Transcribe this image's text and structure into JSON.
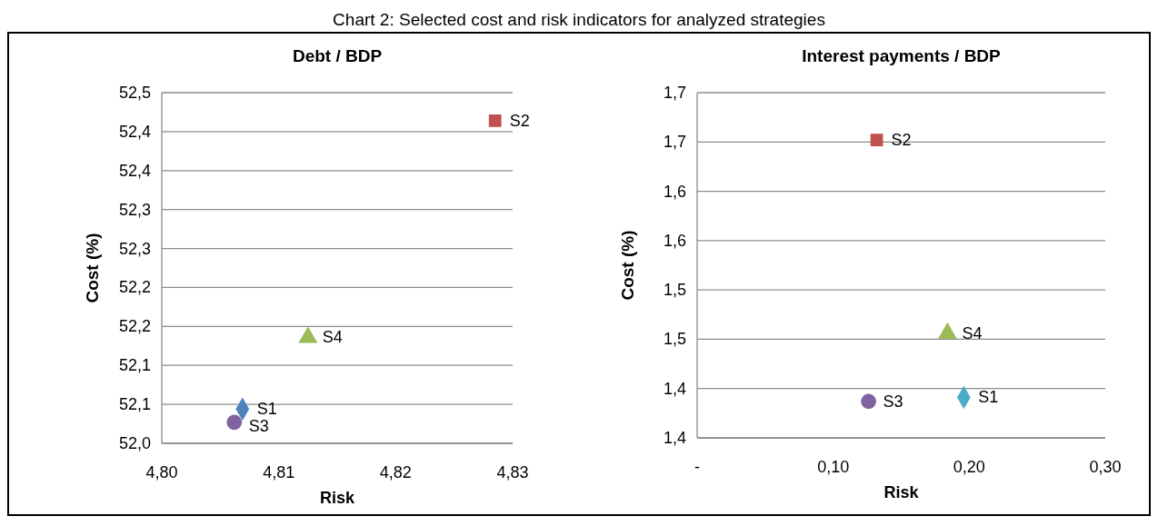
{
  "chart_data": [
    {
      "type": "scatter",
      "title": "Debt / BDP",
      "xlabel": "Risk",
      "ylabel": "Cost (%)",
      "annotations": [
        "Chart 2: Selected cost and risk indicators for analyzed strategies"
      ],
      "xlim": [
        4.8,
        4.83
      ],
      "xticks": [
        {
          "value": 4.8,
          "label": "4,80"
        },
        {
          "value": 4.81,
          "label": "4,81"
        },
        {
          "value": 4.82,
          "label": "4,82"
        },
        {
          "value": 4.83,
          "label": "4,83"
        }
      ],
      "ylim": [
        52.0,
        52.45
      ],
      "yticks": [
        {
          "value": 52.0,
          "label": "52,0"
        },
        {
          "value": 52.05,
          "label": "52,1"
        },
        {
          "value": 52.1,
          "label": "52,1"
        },
        {
          "value": 52.15,
          "label": "52,2"
        },
        {
          "value": 52.2,
          "label": "52,2"
        },
        {
          "value": 52.25,
          "label": "52,3"
        },
        {
          "value": 52.3,
          "label": "52,3"
        },
        {
          "value": 52.35,
          "label": "52,4"
        },
        {
          "value": 52.4,
          "label": "52,4"
        },
        {
          "value": 52.45,
          "label": "52,5"
        }
      ],
      "grid": "y",
      "legend": false,
      "series": [
        {
          "name": "S1",
          "color": "#4f81bd",
          "marker": "diamond",
          "x": [
            4.8069
          ],
          "values": [
            52.044
          ]
        },
        {
          "name": "S2",
          "color": "#c0504d",
          "marker": "square",
          "x": [
            4.8285
          ],
          "values": [
            52.414
          ]
        },
        {
          "name": "S3",
          "color": "#8064a2",
          "marker": "circle",
          "x": [
            4.8062
          ],
          "values": [
            52.027
          ]
        },
        {
          "name": "S4",
          "color": "#9bbb59",
          "marker": "triangle",
          "x": [
            4.8125
          ],
          "values": [
            52.136
          ]
        }
      ]
    },
    {
      "type": "scatter",
      "title": "Interest payments / BDP",
      "xlabel": "Risk",
      "ylabel": "Cost (%)",
      "xlim": [
        0,
        0.3
      ],
      "xticks": [
        {
          "value": 0,
          "label": "-"
        },
        {
          "value": 0.1,
          "label": "0,10"
        },
        {
          "value": 0.2,
          "label": "0,20"
        },
        {
          "value": 0.3,
          "label": "0,30"
        }
      ],
      "ylim": [
        1.35,
        1.7
      ],
      "yticks": [
        {
          "value": 1.35,
          "label": "1,4"
        },
        {
          "value": 1.4,
          "label": "1,4"
        },
        {
          "value": 1.45,
          "label": "1,5"
        },
        {
          "value": 1.5,
          "label": "1,5"
        },
        {
          "value": 1.55,
          "label": "1,6"
        },
        {
          "value": 1.6,
          "label": "1,6"
        },
        {
          "value": 1.65,
          "label": "1,7"
        },
        {
          "value": 1.7,
          "label": "1,7"
        }
      ],
      "grid": "y",
      "legend": false,
      "series": [
        {
          "name": "S1",
          "color": "#4bacc6",
          "marker": "diamond",
          "x": [
            0.196
          ],
          "values": [
            1.391
          ]
        },
        {
          "name": "S2",
          "color": "#c0504d",
          "marker": "square",
          "x": [
            0.132
          ],
          "values": [
            1.652
          ]
        },
        {
          "name": "S3",
          "color": "#8064a2",
          "marker": "circle",
          "x": [
            0.126
          ],
          "values": [
            1.387
          ]
        },
        {
          "name": "S4",
          "color": "#9bbb59",
          "marker": "triangle",
          "x": [
            0.184
          ],
          "values": [
            1.456
          ]
        }
      ]
    }
  ]
}
